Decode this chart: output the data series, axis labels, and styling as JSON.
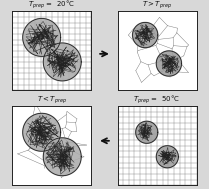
{
  "title_tl": "T$_{prep}$ =  20°C",
  "title_tr": "T > T$_{prep}$",
  "title_bl": "T < T$_{prep}$",
  "title_br": "T$_{prep}$ =  50°C",
  "bg_color": "#d8d8d8",
  "panel_bg": "#ffffff",
  "grid_color": "#666666",
  "microgel_color": "#222222",
  "border_color": "#222222",
  "arrow_color": "#111111",
  "font_size": 5.0,
  "microgel_fill": "#aaaaaa"
}
